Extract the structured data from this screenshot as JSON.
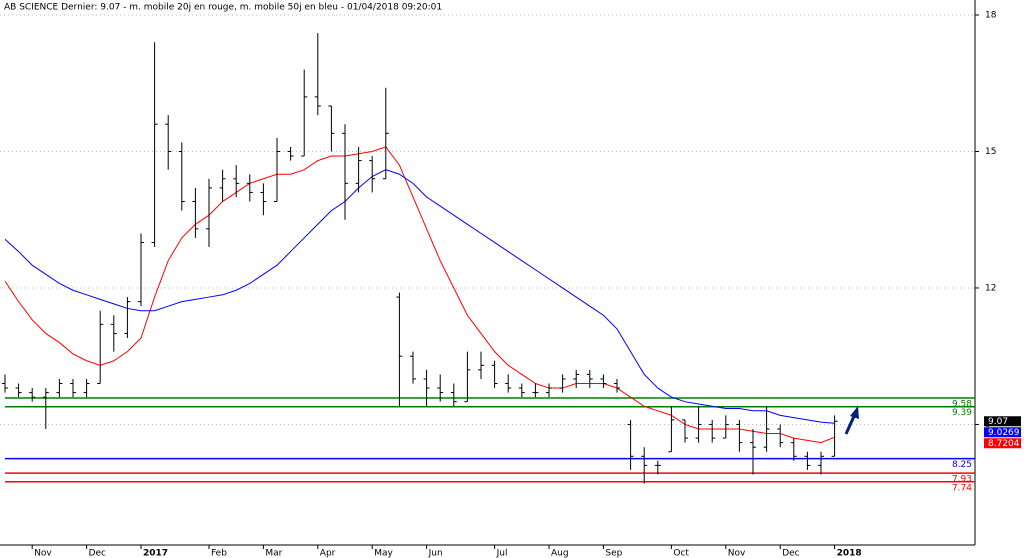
{
  "chart_data": {
    "type": "ohlc",
    "title": "AB SCIENCE Dernier: 9.07 - m. mobile 20j en rouge, m. mobile 50j en bleu - 01/04/2018 09:20:01",
    "categories": [
      null,
      null,
      "Nov",
      null,
      null,
      null,
      "Dec",
      null,
      null,
      null,
      "2017",
      null,
      null,
      null,
      null,
      "Feb",
      null,
      null,
      null,
      "Mar",
      null,
      null,
      null,
      "Apr",
      null,
      null,
      null,
      "May",
      null,
      null,
      null,
      "Jun",
      null,
      null,
      null,
      null,
      "Jul",
      null,
      null,
      null,
      "Aug",
      null,
      null,
      null,
      "Sep",
      null,
      null,
      null,
      null,
      "Oct",
      null,
      null,
      null,
      "Nov",
      null,
      null,
      null,
      "Dec",
      null,
      null,
      null,
      "2018"
    ],
    "open": [
      9.9,
      9.8,
      9.7,
      9.6,
      9.7,
      9.9,
      9.7,
      9.9,
      11.2,
      11.0,
      11.7,
      13.0,
      15.6,
      15.0,
      13.9,
      13.3,
      14.2,
      14.4,
      14.3,
      14.1,
      13.9,
      15.0,
      14.9,
      16.2,
      16.0,
      15.4,
      14.3,
      14.8,
      14.4,
      11.8,
      10.5,
      10.0,
      9.8,
      9.7,
      9.5,
      10.2,
      10.3,
      9.9,
      9.8,
      9.7,
      9.7,
      9.8,
      10.0,
      10.1,
      10.0,
      9.9,
      9.0,
      8.3,
      8.1,
      8.4,
      9.1,
      8.7,
      9.0,
      8.7,
      9.0,
      8.6,
      8.5,
      8.9,
      8.6,
      8.3,
      8.1,
      8.3
    ],
    "high": [
      10.1,
      9.9,
      9.8,
      9.8,
      10.0,
      10.0,
      10.0,
      11.5,
      11.4,
      11.8,
      13.2,
      17.4,
      15.8,
      15.2,
      14.2,
      14.4,
      14.6,
      14.7,
      14.5,
      14.3,
      15.3,
      15.1,
      16.8,
      17.6,
      16.0,
      15.6,
      15.1,
      14.9,
      16.4,
      11.9,
      10.6,
      10.2,
      10.1,
      9.9,
      10.6,
      10.6,
      10.4,
      10.1,
      9.9,
      9.9,
      9.9,
      10.1,
      10.2,
      10.2,
      10.1,
      10.0,
      9.1,
      8.5,
      8.2,
      9.4,
      9.1,
      9.4,
      9.1,
      9.2,
      9.1,
      8.9,
      9.4,
      9.0,
      8.7,
      8.4,
      8.4,
      9.2
    ],
    "low": [
      9.7,
      9.6,
      9.5,
      8.9,
      9.6,
      9.6,
      9.6,
      9.9,
      10.6,
      10.9,
      11.6,
      12.9,
      14.6,
      13.7,
      13.1,
      12.9,
      13.9,
      14.0,
      13.9,
      13.6,
      13.9,
      14.8,
      14.9,
      15.8,
      15.0,
      13.5,
      14.1,
      14.1,
      14.4,
      9.4,
      9.9,
      9.4,
      9.5,
      9.4,
      9.5,
      10.0,
      9.8,
      9.7,
      9.6,
      9.6,
      9.6,
      9.7,
      9.8,
      9.8,
      9.8,
      9.7,
      8.0,
      7.7,
      7.9,
      8.4,
      8.6,
      8.6,
      8.6,
      8.7,
      8.4,
      7.9,
      8.4,
      8.5,
      8.2,
      8.0,
      7.9,
      8.3
    ],
    "close": [
      9.8,
      9.7,
      9.6,
      9.7,
      9.9,
      9.7,
      9.9,
      11.2,
      11.0,
      11.7,
      13.0,
      15.6,
      15.0,
      13.9,
      13.3,
      14.2,
      14.4,
      14.3,
      14.1,
      13.9,
      15.0,
      14.9,
      16.2,
      16.0,
      15.4,
      14.3,
      14.8,
      14.4,
      15.4,
      10.5,
      10.0,
      9.8,
      9.7,
      9.5,
      10.2,
      10.3,
      9.9,
      9.8,
      9.7,
      9.7,
      9.8,
      10.0,
      10.1,
      10.0,
      9.9,
      9.8,
      8.3,
      8.1,
      8.1,
      9.1,
      8.7,
      9.0,
      8.7,
      9.0,
      8.6,
      8.5,
      8.9,
      8.6,
      8.3,
      8.1,
      8.3,
      9.07
    ],
    "moving_averages": [
      {
        "color": "#ff0000",
        "values": [
          12.15,
          11.7,
          11.3,
          11.0,
          10.8,
          10.55,
          10.4,
          10.3,
          10.4,
          10.6,
          10.9,
          11.8,
          12.6,
          13.1,
          13.4,
          13.6,
          13.9,
          14.1,
          14.3,
          14.4,
          14.5,
          14.5,
          14.6,
          14.8,
          14.9,
          14.9,
          14.95,
          15.0,
          15.1,
          14.7,
          14.0,
          13.3,
          12.6,
          12.0,
          11.4,
          11.0,
          10.6,
          10.3,
          10.1,
          9.9,
          9.8,
          9.8,
          9.9,
          9.9,
          9.9,
          9.8,
          9.6,
          9.4,
          9.3,
          9.2,
          9.0,
          8.9,
          8.9,
          8.9,
          8.9,
          8.85,
          8.8,
          8.8,
          8.7,
          8.65,
          8.6,
          8.7204
        ]
      },
      {
        "color": "#0000ff",
        "values": [
          13.07,
          12.8,
          12.5,
          12.3,
          12.1,
          11.95,
          11.85,
          11.75,
          11.65,
          11.55,
          11.5,
          11.5,
          11.6,
          11.7,
          11.75,
          11.8,
          11.85,
          11.95,
          12.1,
          12.3,
          12.5,
          12.8,
          13.1,
          13.4,
          13.7,
          13.9,
          14.2,
          14.45,
          14.6,
          14.5,
          14.3,
          14.0,
          13.8,
          13.6,
          13.4,
          13.2,
          13.0,
          12.8,
          12.6,
          12.4,
          12.2,
          12.0,
          11.8,
          11.6,
          11.4,
          11.1,
          10.6,
          10.1,
          9.8,
          9.6,
          9.5,
          9.45,
          9.4,
          9.35,
          9.35,
          9.3,
          9.3,
          9.2,
          9.15,
          9.1,
          9.05,
          9.0269
        ]
      }
    ],
    "levels": [
      {
        "value": 9.58,
        "color": "#008000"
      },
      {
        "value": 9.39,
        "color": "#008000"
      },
      {
        "value": 8.25,
        "color": "#0000ff"
      },
      {
        "value": 7.93,
        "color": "#ff0000"
      },
      {
        "value": 7.74,
        "color": "#ff0000"
      }
    ],
    "color": "#000000",
    "ylim": [
      6.35,
      18.33
    ],
    "yticks": [
      9,
      12,
      15,
      18
    ],
    "grid": true
  }
}
